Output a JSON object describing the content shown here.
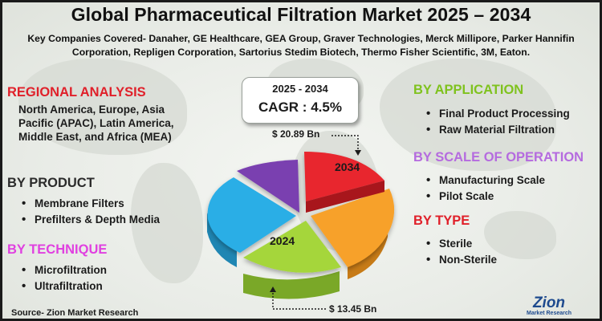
{
  "title": "Global Pharmaceutical Filtration Market 2025 – 2034",
  "subtitle": "Key Companies Covered- Danaher, GE Healthcare, GEA Group, Graver Technologies, Merck Millipore, Parker Hannifin Corporation, Repligen Corporation, Sartorius Stedim Biotech, Thermo Fisher Scientific, 3M, Eaton.",
  "regional": {
    "heading": "REGIONAL ANALYSIS",
    "text": "North America, Europe, Asia Pacific (APAC), Latin America, Middle East, and Africa (MEA)"
  },
  "product": {
    "heading": "BY PRODUCT",
    "items": [
      "Membrane Filters",
      "Prefilters & Depth Media"
    ]
  },
  "technique": {
    "heading": "BY TECHNIQUE",
    "items": [
      "Microfiltration",
      "Ultrafiltration"
    ]
  },
  "application": {
    "heading": "BY APPLICATION",
    "items": [
      "Final Product Processing",
      "Raw Material Filtration"
    ]
  },
  "scale": {
    "heading": "BY SCALE OF OPERATION",
    "items": [
      "Manufacturing Scale",
      "Pilot Scale"
    ]
  },
  "type": {
    "heading": "BY TYPE",
    "items": [
      "Sterile",
      "Non-Sterile"
    ]
  },
  "cagr": {
    "years": "2025 - 2034",
    "value": "CAGR : 4.5%"
  },
  "pie": {
    "label_2034": "2034",
    "label_2024": "2024",
    "value_2034": "$ 20.89 Bn",
    "value_2024": "$ 13.45 Bn",
    "colors": [
      "#e8262d",
      "#f7a12c",
      "#a5d63a",
      "#2aaee6",
      "#7a3fb0"
    ]
  },
  "source": "Source- Zion Market Research",
  "logo": {
    "main": "Zion",
    "sub": "Market Research"
  }
}
